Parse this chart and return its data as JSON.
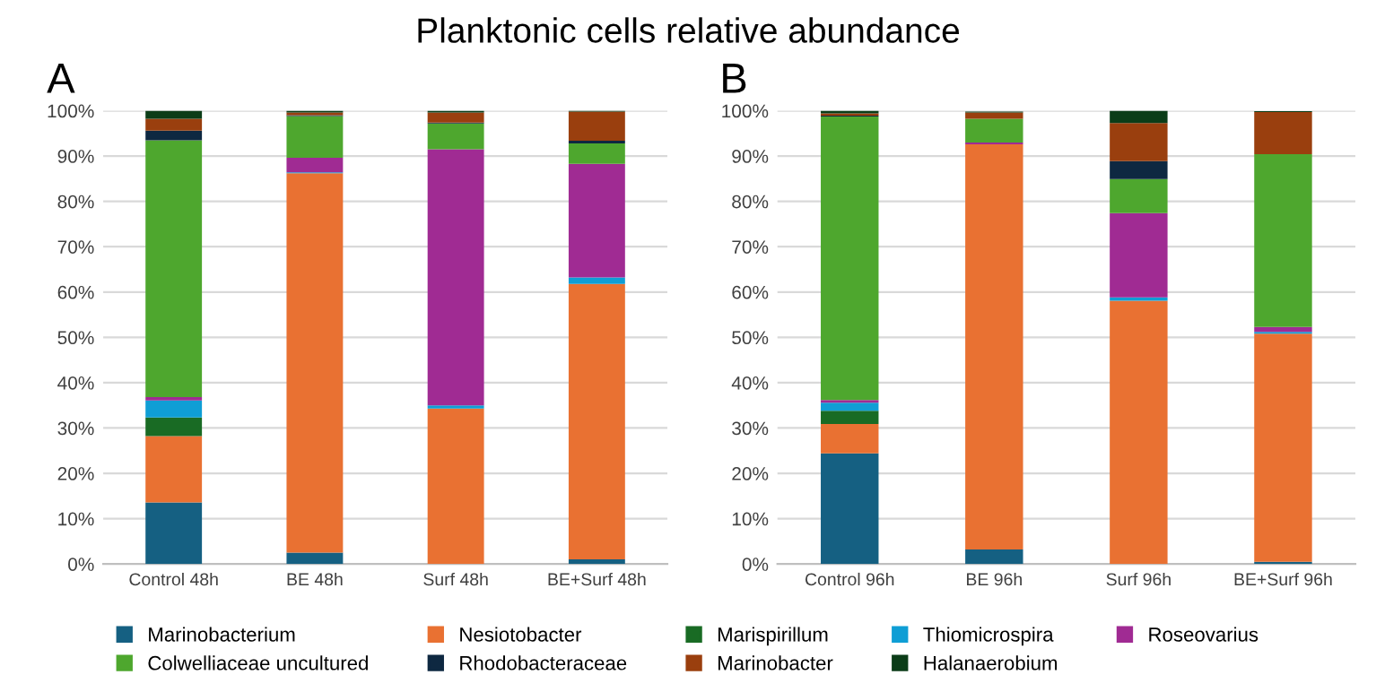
{
  "chart_data": [
    {
      "type": "bar",
      "title": "Planktonic cells relative abundance",
      "subtitle": "A",
      "stacked": true,
      "categories": [
        "Control 48h",
        "BE 48h",
        "Surf 48h",
        "BE+Surf 48h"
      ],
      "ylim": [
        0,
        100
      ],
      "yticks": [
        {
          "value": 0,
          "label": "0%"
        },
        {
          "value": 10,
          "label": "10%"
        },
        {
          "value": 20,
          "label": "20%"
        },
        {
          "value": 30,
          "label": "30%"
        },
        {
          "value": 40,
          "label": "40%"
        },
        {
          "value": 50,
          "label": "50%"
        },
        {
          "value": 60,
          "label": "60%"
        },
        {
          "value": 70,
          "label": "70%"
        },
        {
          "value": 80,
          "label": "80%"
        },
        {
          "value": 90,
          "label": "90%"
        },
        {
          "value": 100,
          "label": "100%"
        }
      ],
      "grid": "y",
      "legend": "bottom",
      "series": [
        {
          "name": "Marinobacterium",
          "color": "#156082",
          "values": [
            13.6,
            2.5,
            0,
            1.0
          ]
        },
        {
          "name": "Nesiotobacter",
          "color": "#e97132",
          "values": [
            14.6,
            83.7,
            34.3,
            60.8
          ]
        },
        {
          "name": "Marispirillum",
          "color": "#196b24",
          "values": [
            4.1,
            0,
            0,
            0
          ]
        },
        {
          "name": "Thiomicrospira",
          "color": "#0f9ed5",
          "values": [
            3.8,
            0.2,
            0.7,
            1.4
          ]
        },
        {
          "name": "Roseovarius",
          "color": "#a02b93",
          "values": [
            0.7,
            3.2,
            56.5,
            25.1
          ]
        },
        {
          "name": "Colwelliaceae uncultured",
          "color": "#4ea72e",
          "values": [
            56.7,
            9.2,
            5.7,
            4.5
          ]
        },
        {
          "name": "Rhodobacteraceae",
          "color": "#0e2841",
          "values": [
            2.1,
            0.2,
            0.2,
            0.6
          ]
        },
        {
          "name": "Marinobacter",
          "color": "#9a3f0e",
          "values": [
            2.6,
            0.6,
            2.2,
            6.4
          ]
        },
        {
          "name": "Halanaerobium",
          "color": "#0b3d18",
          "values": [
            1.8,
            0.4,
            0.4,
            0.2
          ]
        }
      ]
    },
    {
      "type": "bar",
      "subtitle": "B",
      "stacked": true,
      "categories": [
        "Control 96h",
        "BE 96h",
        "Surf 96h",
        "BE+Surf 96h"
      ],
      "ylim": [
        0,
        100
      ],
      "yticks": [
        {
          "value": 0,
          "label": "0%"
        },
        {
          "value": 10,
          "label": "10%"
        },
        {
          "value": 20,
          "label": "20%"
        },
        {
          "value": 30,
          "label": "30%"
        },
        {
          "value": 40,
          "label": "40%"
        },
        {
          "value": 50,
          "label": "50%"
        },
        {
          "value": 60,
          "label": "60%"
        },
        {
          "value": 70,
          "label": "70%"
        },
        {
          "value": 80,
          "label": "80%"
        },
        {
          "value": 90,
          "label": "90%"
        },
        {
          "value": 100,
          "label": "100%"
        }
      ],
      "grid": "y",
      "series": [
        {
          "color": "#156082",
          "values": [
            24.4,
            3.2,
            0,
            0.5
          ]
        },
        {
          "color": "#e97132",
          "values": [
            6.5,
            89.4,
            58.1,
            50.3
          ]
        },
        {
          "color": "#196b24",
          "values": [
            2.9,
            0,
            0,
            0
          ]
        },
        {
          "color": "#0f9ed5",
          "values": [
            1.8,
            null,
            0.7,
            0.4
          ]
        },
        {
          "color": "#a02b93",
          "values": [
            0.6,
            0.4,
            18.6,
            1.1
          ]
        },
        {
          "color": "#4ea72e",
          "values": [
            62.5,
            5.2,
            7.5,
            38.1
          ]
        },
        {
          "color": "#0e2841",
          "values": [
            0.2,
            null,
            4.0,
            null
          ]
        },
        {
          "color": "#9a3f0e",
          "values": [
            0.5,
            1.4,
            8.4,
            9.3
          ]
        },
        {
          "color": "#0b3d18",
          "values": [
            0.6,
            0.2,
            2.7,
            0.2
          ]
        }
      ]
    }
  ]
}
